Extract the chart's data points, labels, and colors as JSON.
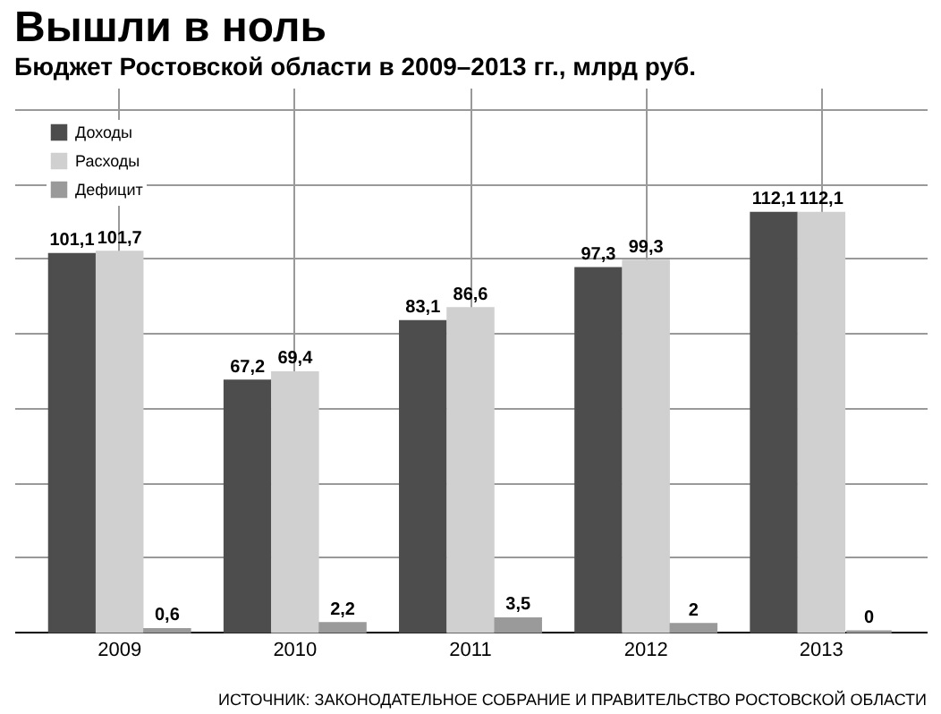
{
  "chart_data": {
    "type": "bar",
    "title": "Вышли в ноль",
    "subtitle": "Бюджет Ростовской области в 2009–2013 гг., млрд руб.",
    "categories": [
      "2009",
      "2010",
      "2011",
      "2012",
      "2013"
    ],
    "series": [
      {
        "name": "Доходы",
        "color": "#4d4d4d",
        "values": [
          101.1,
          67.2,
          83.1,
          97.3,
          112.1
        ],
        "value_labels": [
          "101,1",
          "67,2",
          "83,1",
          "97,3",
          "112,1"
        ]
      },
      {
        "name": "Расходы",
        "color": "#d0d0d0",
        "values": [
          101.7,
          69.4,
          86.6,
          99.3,
          112.1
        ],
        "value_labels": [
          "101,7",
          "69,4",
          "86,6",
          "99,3",
          "112,1"
        ]
      },
      {
        "name": "Дефицит",
        "color": "#9a9a9a",
        "values": [
          0.6,
          2.2,
          3.5,
          2,
          0
        ],
        "value_labels": [
          "0,6",
          "2,2",
          "3,5",
          "2",
          "0"
        ]
      }
    ],
    "annotations": [
      "ИСТОЧНИК: ЗАКОНОДАТЕЛЬНОЕ СОБРАНИЕ И ПРАВИТЕЛЬСТВО РОСТОВСКОЙ ОБЛАСТИ"
    ],
    "legend": "top left",
    "grid": true,
    "tick_labels": "x"
  }
}
